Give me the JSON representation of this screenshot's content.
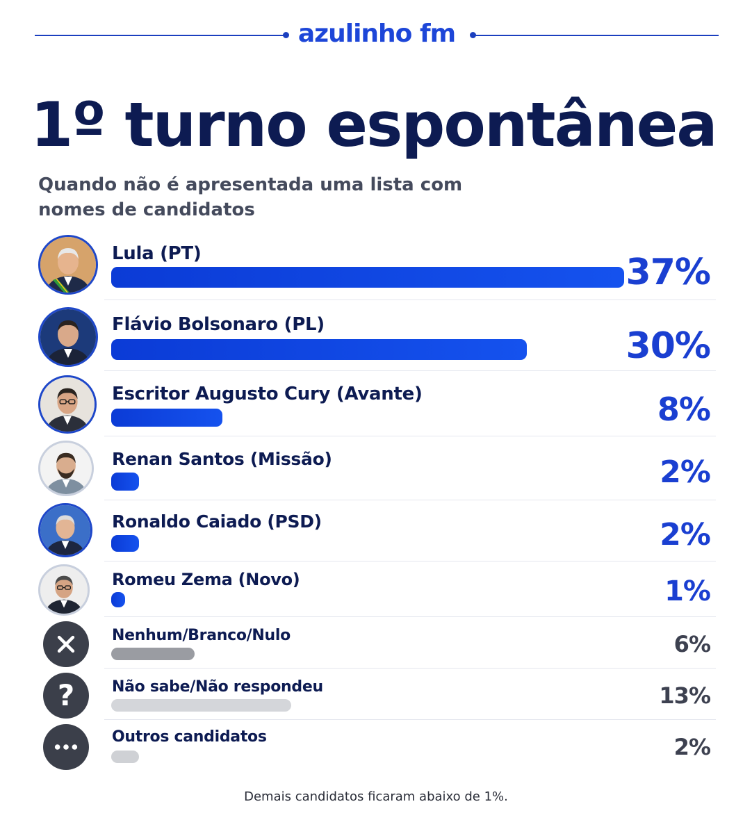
{
  "brand": {
    "name": "azulinho fm",
    "color": "#1d46d8"
  },
  "header": {
    "title": "1º turno espontânea",
    "subtitle": "Quando não é apresentada uma lista com nomes de candidatos"
  },
  "footnote": "Demais candidatos ficaram abaixo de 1%.",
  "icons": {
    "none": "close-icon",
    "unknown": "question-icon",
    "others": "ellipsis-icon"
  },
  "colors": {
    "bar_blue": "#1148e4",
    "percent_blue": "#1a3fd1",
    "title": "#0d1b52"
  },
  "chart_data": {
    "type": "bar",
    "orientation": "horizontal",
    "title": "1º turno espontânea",
    "subtitle": "Quando não é apresentada uma lista com nomes de candidatos",
    "categories": [
      "Lula (PT)",
      "Flávio Bolsonaro (PL)",
      "Escritor Augusto Cury (Avante)",
      "Renan Santos (Missão)",
      "Ronaldo Caiado (PSD)",
      "Romeu Zema (Novo)",
      "Nenhum/Branco/Nulo",
      "Não sabe/Não respondeu",
      "Outros candidatos"
    ],
    "values": [
      37,
      30,
      8,
      2,
      2,
      1,
      6,
      13,
      2
    ],
    "value_labels": [
      "37%",
      "30%",
      "8%",
      "2%",
      "2%",
      "1%",
      "6%",
      "13%",
      "2%"
    ],
    "unit": "%",
    "xlim": [
      0,
      37
    ],
    "grid": false,
    "legend": "none"
  }
}
